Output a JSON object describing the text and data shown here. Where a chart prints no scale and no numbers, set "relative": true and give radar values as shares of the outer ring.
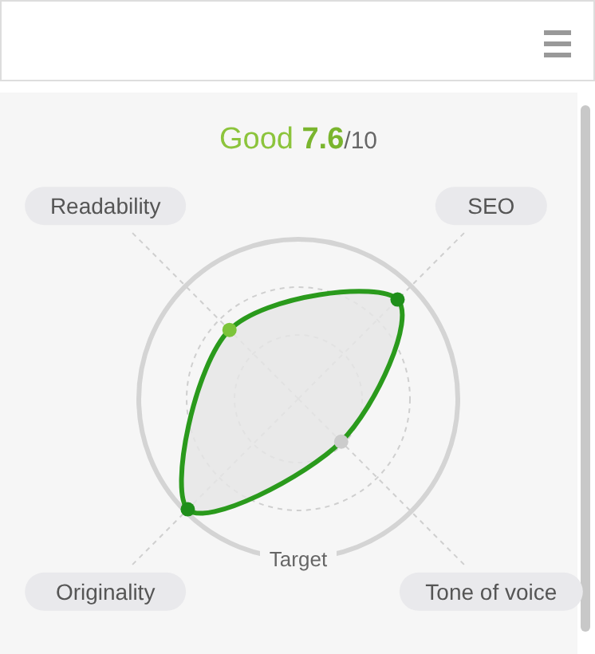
{
  "chart_data": {
    "type": "radar",
    "title": "Good 7.6/10",
    "relative": true,
    "categories": [
      "SEO",
      "Tone of voice",
      "Originality",
      "Readability"
    ],
    "series": [
      {
        "color": "#2a9a1c",
        "values": [
          0.88,
          0.38,
          0.98,
          0.61
        ],
        "colors": [
          "#1f8f1a",
          "#cccccc",
          "#1f8f1a",
          "#7cc43a"
        ]
      }
    ],
    "annotations": [
      "Target"
    ],
    "grid": true,
    "marker": "circle"
  }
}
